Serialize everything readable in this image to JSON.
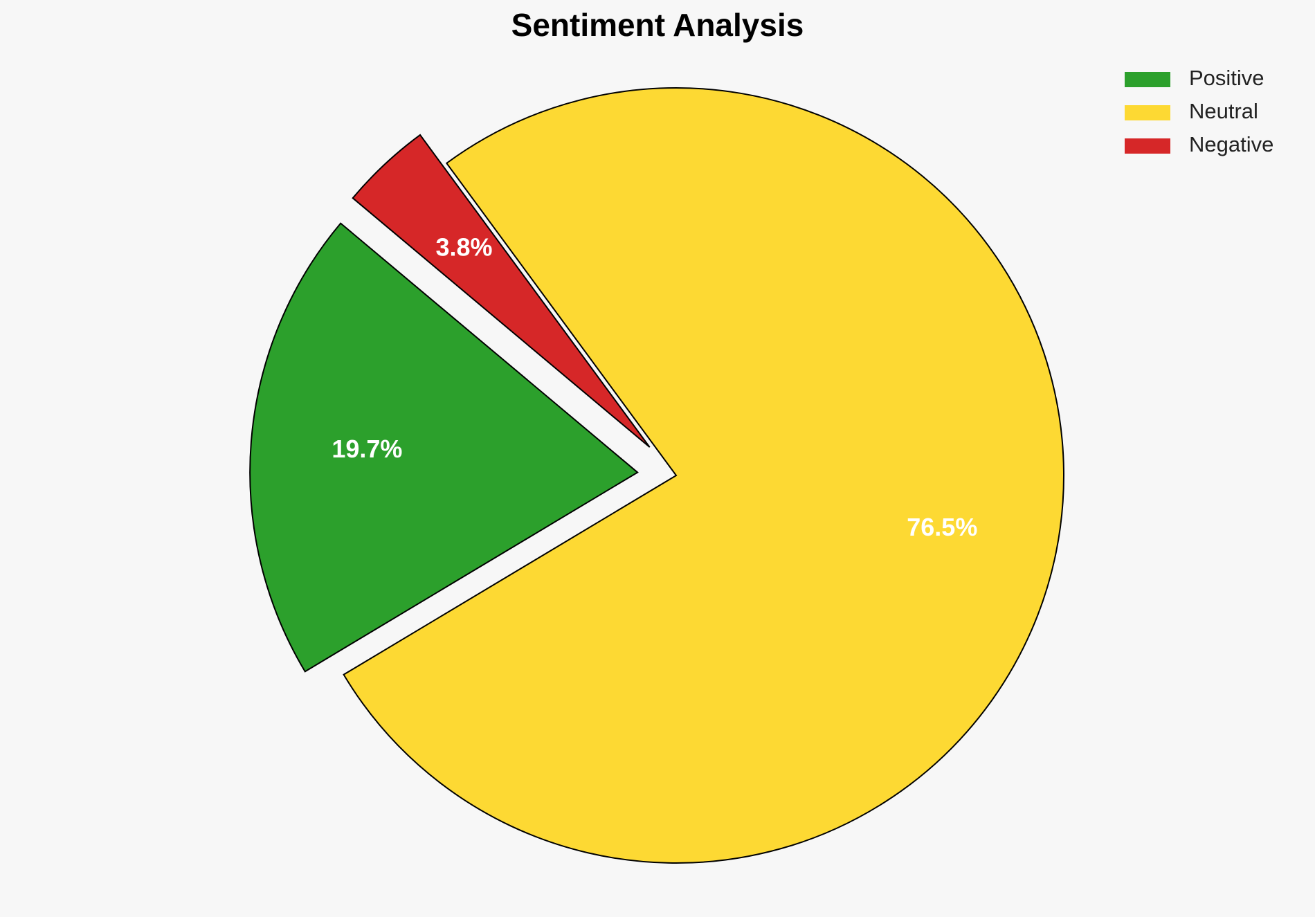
{
  "chart_data": {
    "type": "pie",
    "title": "Sentiment Analysis",
    "categories": [
      "Positive",
      "Neutral",
      "Negative"
    ],
    "values": [
      19.7,
      76.5,
      3.8
    ],
    "value_labels": [
      "19.7%",
      "76.5%",
      "3.8%"
    ],
    "colors": [
      "#2ca02c",
      "#fdd933",
      "#d62728"
    ],
    "explode": [
      0.1,
      0,
      0.1
    ],
    "legend": "upper right"
  }
}
